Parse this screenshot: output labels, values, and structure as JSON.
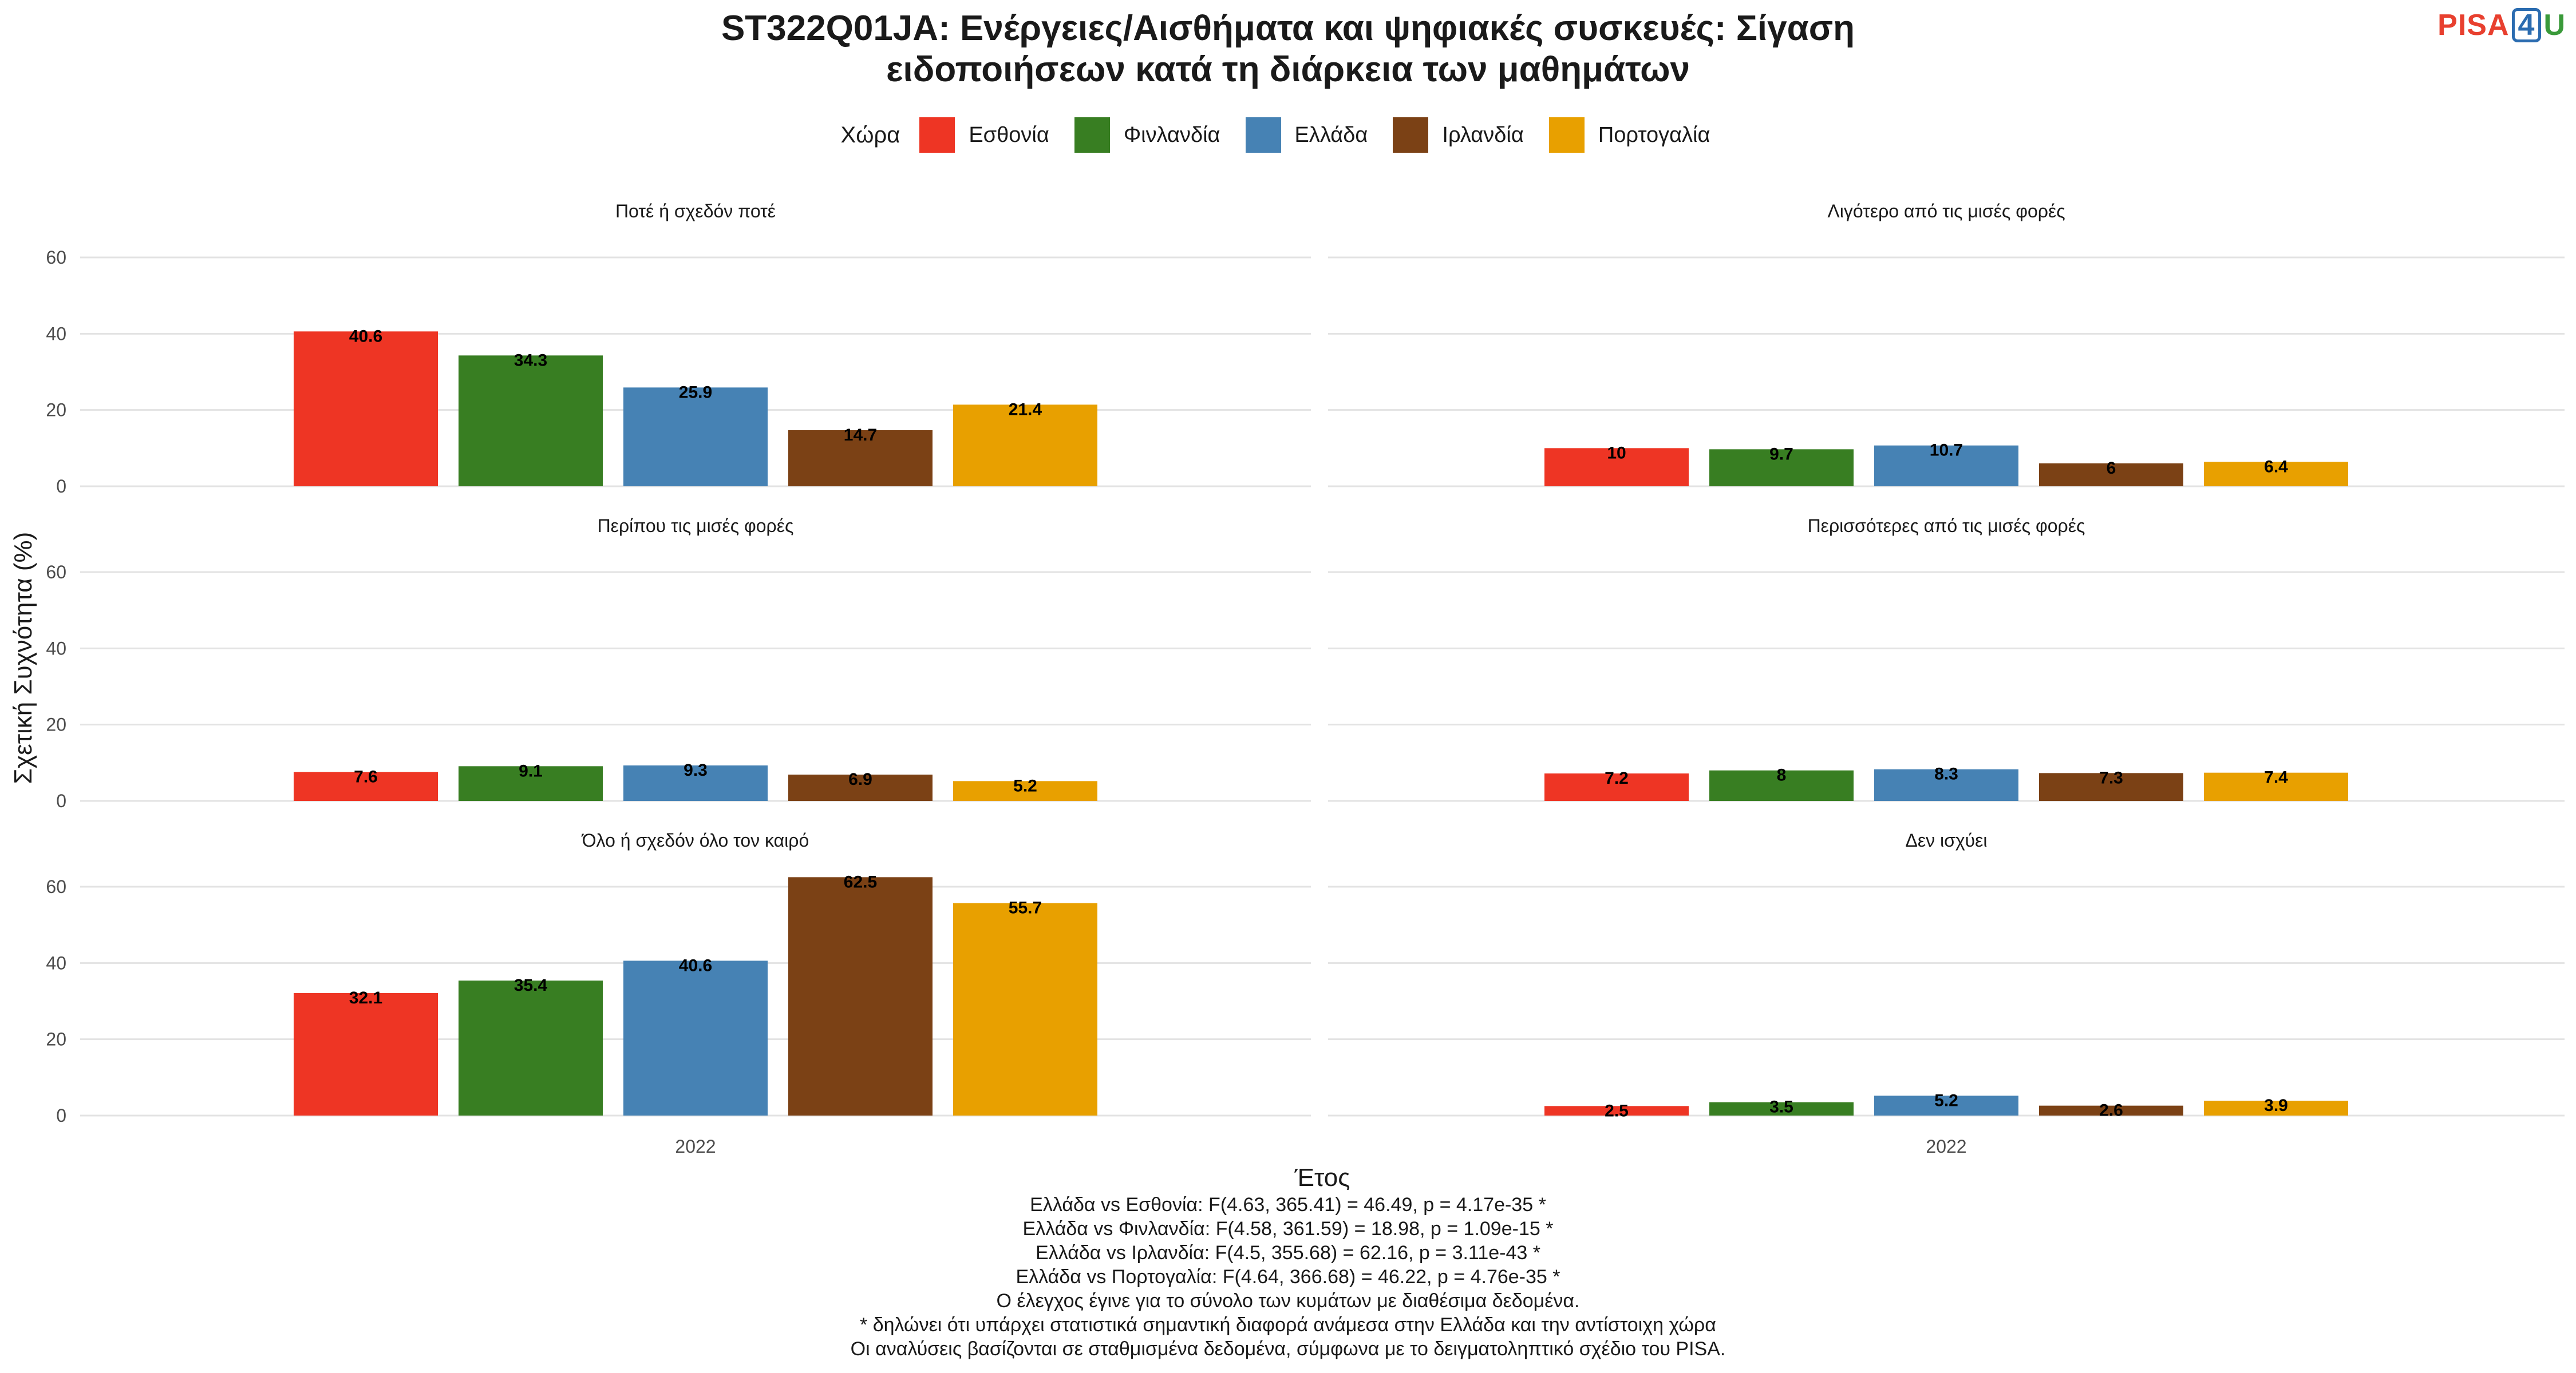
{
  "title_line1": "ST322Q01JA: Ενέργειες/Αισθήματα και ψηφιακές συσκευές: Σίγαση",
  "title_line2": "ειδοποιήσεων κατά τη διάρκεια των μαθημάτων",
  "logo": {
    "part1": "PISA",
    "part2": "4",
    "part3": "U"
  },
  "colors": {
    "Εσθονία": "#EE3524",
    "Φινλανδία": "#387E22",
    "Ελλάδα": "#4682B4",
    "Ιρλανδία": "#7B4115",
    "Πορτογαλία": "#E8A000"
  },
  "chart_data": {
    "type": "bar",
    "legend_title": "Χώρα",
    "legend_position": "top",
    "xlabel": "Έτος",
    "ylabel": "Σχετική Συχνότητα (%)",
    "ylim": [
      0,
      60
    ],
    "yticks": [
      0,
      20,
      40,
      60
    ],
    "grid": true,
    "category": "2022",
    "series_names": [
      "Εσθονία",
      "Φινλανδία",
      "Ελλάδα",
      "Ιρλανδία",
      "Πορτογαλία"
    ],
    "panels": [
      {
        "title": "Ποτέ ή σχεδόν ποτέ",
        "values": [
          40.6,
          34.3,
          25.9,
          14.7,
          21.4
        ]
      },
      {
        "title": "Λιγότερο από τις μισές φορές",
        "values": [
          10,
          9.7,
          10.7,
          6,
          6.4
        ]
      },
      {
        "title": "Περίπου τις μισές φορές",
        "values": [
          7.6,
          9.1,
          9.3,
          6.9,
          5.2
        ]
      },
      {
        "title": "Περισσότερες από τις μισές φορές",
        "values": [
          7.2,
          8,
          8.3,
          7.3,
          7.4
        ]
      },
      {
        "title": "Όλο ή σχεδόν όλο τον καιρό",
        "values": [
          32.1,
          35.4,
          40.6,
          62.5,
          55.7
        ]
      },
      {
        "title": "Δεν ισχύει",
        "values": [
          2.5,
          3.5,
          5.2,
          2.6,
          3.9
        ]
      }
    ]
  },
  "notes": [
    "Ελλάδα vs Εσθονία: F(4.63, 365.41) = 46.49, p = 4.17e-35 *",
    "Ελλάδα vs Φινλανδία: F(4.58, 361.59) = 18.98, p = 1.09e-15 *",
    "Ελλάδα vs Ιρλανδία: F(4.5, 355.68) = 62.16, p = 3.11e-43 *",
    "Ελλάδα vs Πορτογαλία: F(4.64, 366.68) = 46.22, p = 4.76e-35 *",
    "Ο έλεγχος έγινε για το σύνολο των κυμάτων με διαθέσιμα δεδομένα.",
    "* δηλώνει ότι υπάρχει στατιστικά σημαντική διαφορά ανάμεσα στην Ελλάδα και την αντίστοιχη χώρα",
    "Οι αναλύσεις βασίζονται σε σταθμισμένα δεδομένα, σύμφωνα με το δειγματοληπτικό σχέδιο του PISA."
  ]
}
